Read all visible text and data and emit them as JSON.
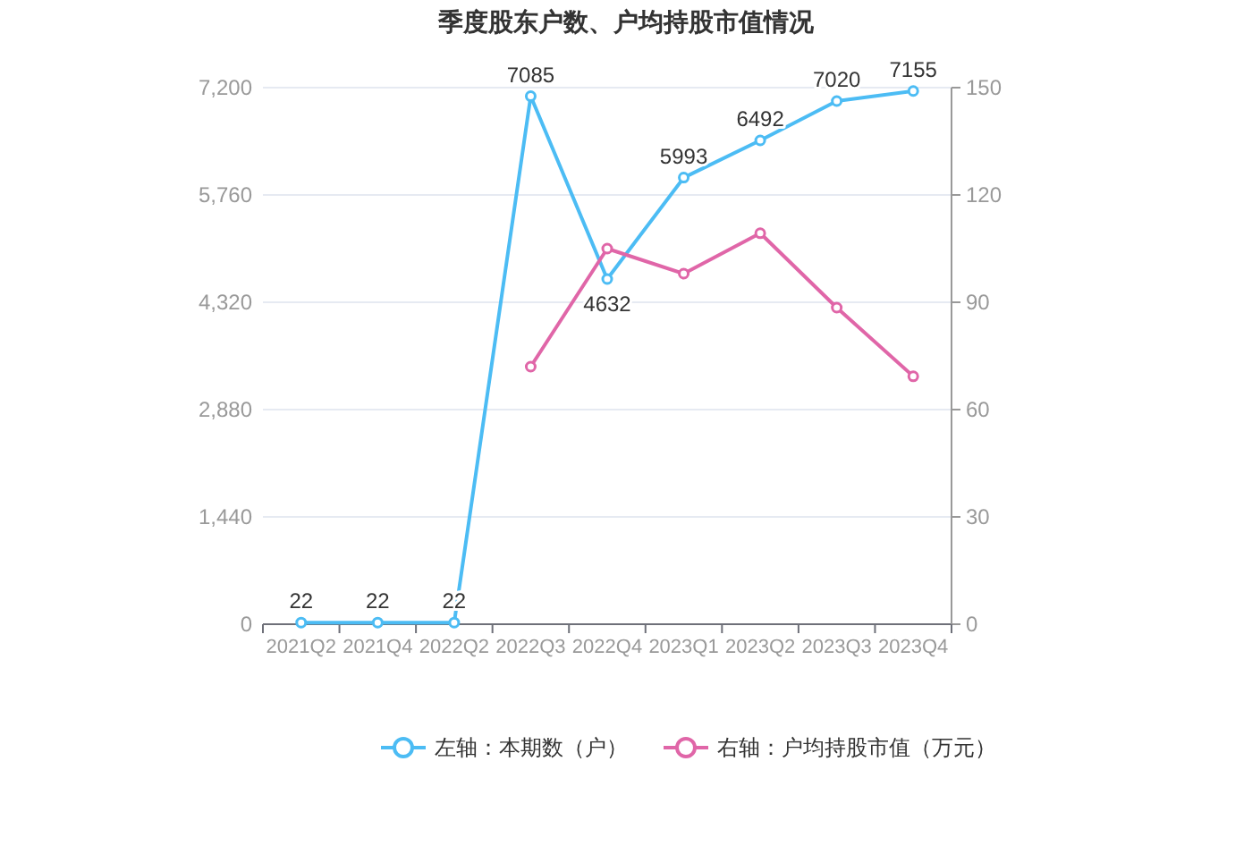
{
  "chart_data": {
    "type": "line",
    "title": "季度股东户数、户均持股市值情况",
    "categories": [
      "2021Q2",
      "2021Q4",
      "2022Q2",
      "2022Q3",
      "2022Q4",
      "2023Q1",
      "2023Q2",
      "2023Q3",
      "2023Q4"
    ],
    "series": [
      {
        "name": "左轴：本期数（户）",
        "color": "#4cbcf4",
        "values": [
          22,
          22,
          22,
          7085,
          4632,
          5993,
          6492,
          7020,
          7155
        ],
        "value_labels": [
          "22",
          "22",
          "22",
          "7085",
          "4632",
          "5993",
          "6492",
          "7020",
          "7155"
        ]
      },
      {
        "name": "右轴：户均持股市值（万元）",
        "color": "#e066a8",
        "axis": "y2",
        "values": [
          null,
          null,
          null,
          72,
          105,
          98,
          109.3,
          88.5,
          69.3
        ]
      }
    ],
    "ylim": [
      0,
      7200
    ],
    "yticks": [
      0,
      {
        "value": 1440,
        "label": "1,440"
      },
      {
        "value": 2880,
        "label": "2,880"
      },
      {
        "value": 4320,
        "label": "4,320"
      },
      {
        "value": 5760,
        "label": "5,760"
      },
      {
        "value": 7200,
        "label": "7,200"
      }
    ],
    "y2lim": [
      0,
      150
    ],
    "y2ticks": [
      0,
      30,
      60,
      90,
      120,
      150
    ],
    "grid": "y",
    "legend": "bottom",
    "marker": "circle"
  }
}
